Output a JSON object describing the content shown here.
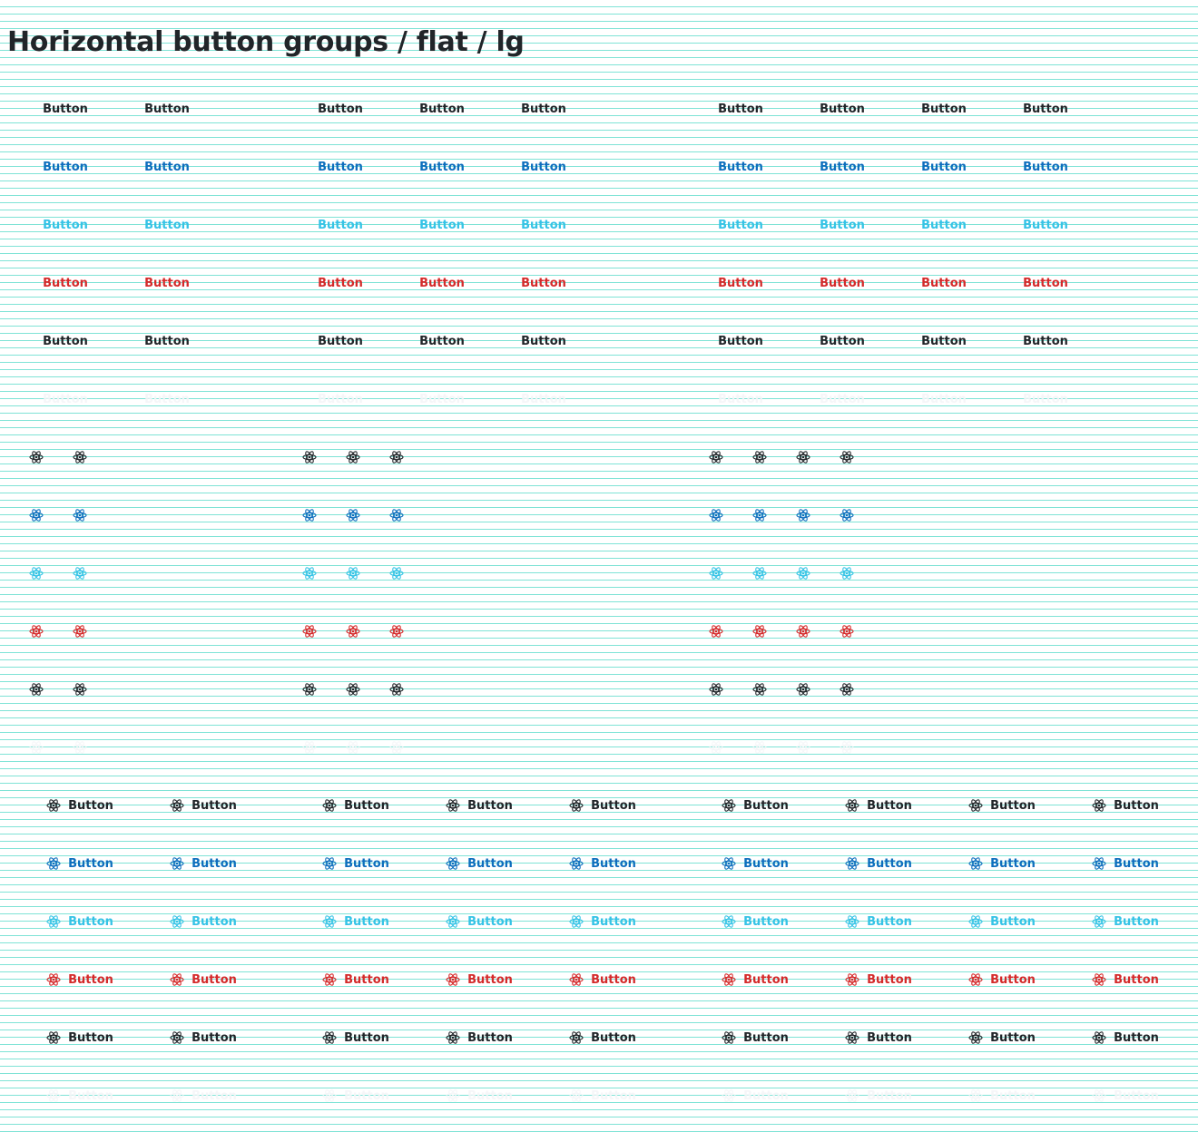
{
  "page": {
    "title": "Horizontal button groups / flat / lg"
  },
  "button_label": "Button",
  "icon_name": "atom-icon",
  "variants": [
    {
      "name": "default",
      "color": "#212529"
    },
    {
      "name": "primary",
      "color": "#0d6ebd"
    },
    {
      "name": "info",
      "color": "#35c3e6"
    },
    {
      "name": "danger",
      "color": "#d42a2a"
    },
    {
      "name": "dark",
      "color": "#212529"
    },
    {
      "name": "light",
      "color": "#f4f6f8"
    }
  ],
  "sections": [
    {
      "name": "text-only"
    },
    {
      "name": "icon-only"
    },
    {
      "name": "icon-and-text"
    }
  ],
  "groups": [
    {
      "name": "group-of-2",
      "count": 2
    },
    {
      "name": "group-of-3",
      "count": 3
    },
    {
      "name": "group-of-4",
      "count": 4
    }
  ]
}
